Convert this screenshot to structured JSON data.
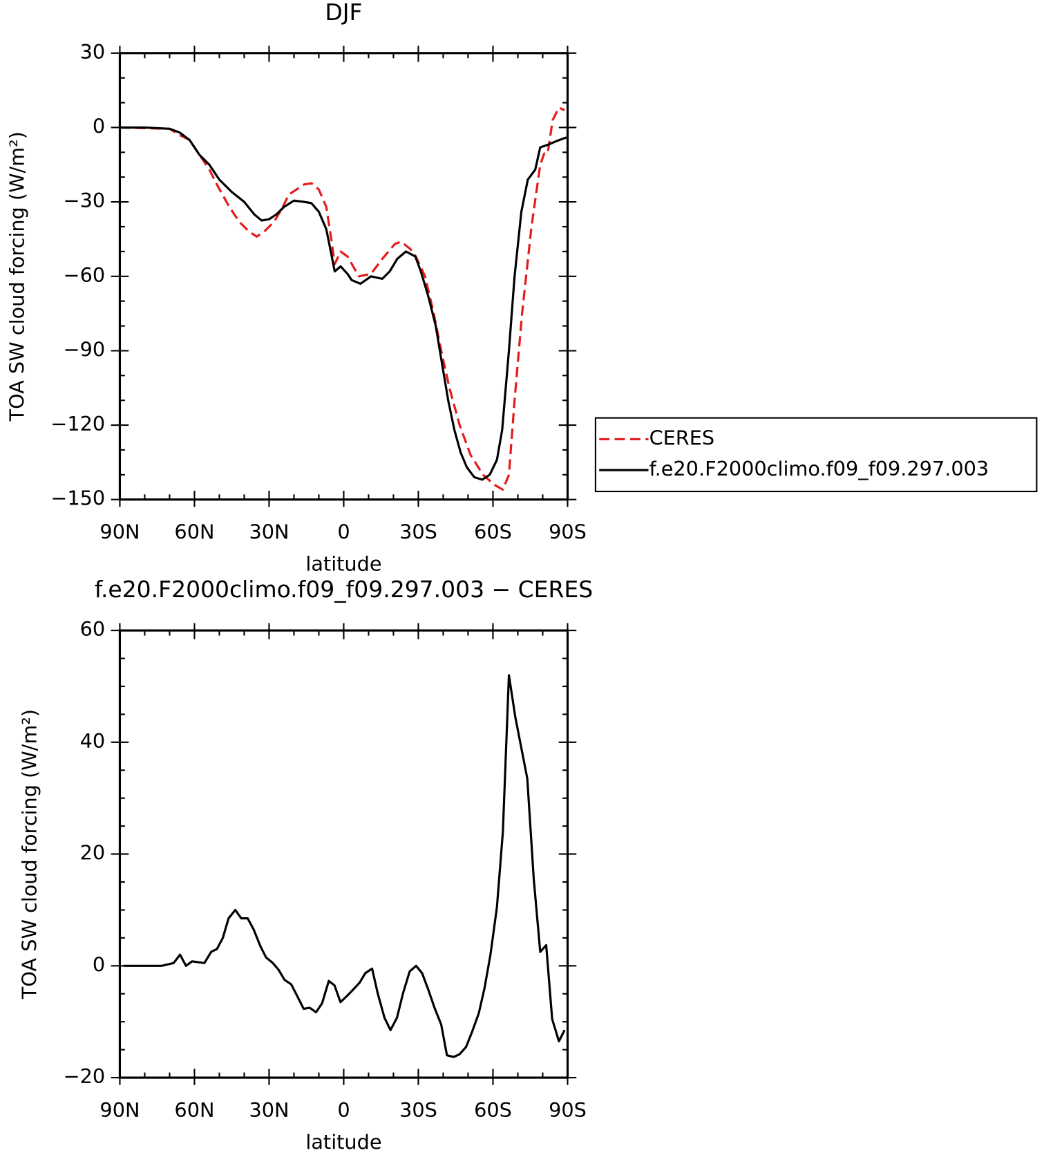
{
  "chart_data": [
    {
      "type": "line",
      "title": "DJF",
      "xlabel": "latitude",
      "ylabel": "TOA SW cloud forcing (W/m²)",
      "xlim": [
        90,
        -90
      ],
      "xticks": [
        {
          "value": 90,
          "label": "90N"
        },
        {
          "value": 60,
          "label": "60N"
        },
        {
          "value": 30,
          "label": "30N"
        },
        0,
        {
          "value": -30,
          "label": "30S"
        },
        {
          "value": -60,
          "label": "60S"
        },
        {
          "value": -90,
          "label": "90S"
        }
      ],
      "xminorticks": [
        80,
        70,
        50,
        40,
        20,
        10,
        -10,
        -20,
        -40,
        -50,
        -70,
        -80
      ],
      "ylim": [
        -150,
        30
      ],
      "yticks": [
        {
          "value": -150,
          "label": "−150"
        },
        {
          "value": -120,
          "label": "−120"
        },
        {
          "value": -90,
          "label": "−90"
        },
        {
          "value": -60,
          "label": "−60"
        },
        {
          "value": -30,
          "label": "−30"
        },
        0,
        30
      ],
      "yminorticks": [
        -140,
        -130,
        -110,
        -100,
        -80,
        -70,
        -50,
        -40,
        -20,
        -10,
        10,
        20
      ],
      "legend": "right",
      "series": [
        {
          "name": "CERES",
          "color": "#e41a1c",
          "dashed": true,
          "x": [
            90,
            70,
            66,
            62,
            58,
            54,
            51,
            46,
            42,
            38,
            35,
            32,
            28,
            25,
            22,
            19,
            16,
            13,
            10,
            7,
            5,
            3.6,
            1.2,
            -1.5,
            -6.1,
            -11,
            -15.5,
            -20.5,
            -23,
            -26.8,
            -29,
            -32.7,
            -36.2,
            -39.2,
            -42.5,
            -46.6,
            -51,
            -56,
            -60.5,
            -64,
            -66.4,
            -68.7,
            -71.7,
            -75.5,
            -79,
            -80.6,
            -82,
            -84,
            -86.5,
            -88.8
          ],
          "values": [
            0,
            -0.5,
            -3,
            -5,
            -11,
            -17,
            -23,
            -32,
            -38,
            -42,
            -44,
            -42,
            -38,
            -33,
            -27,
            -25,
            -23,
            -22.5,
            -25,
            -32,
            -45,
            -55,
            -50,
            -52,
            -60,
            -59,
            -53,
            -47,
            -46,
            -49,
            -52,
            -60,
            -75,
            -90,
            -105,
            -120,
            -132,
            -140,
            -144,
            -146,
            -140,
            -110,
            -75,
            -40,
            -15,
            -10.5,
            -10.5,
            3,
            8,
            7
          ]
        },
        {
          "name": "f.e20.F2000climo.f09_f09.297.003",
          "color": "#000000",
          "dashed": false,
          "x": [
            90,
            80,
            70,
            66,
            62,
            58,
            54,
            50,
            45,
            40,
            36,
            33,
            30,
            27,
            24,
            20,
            16,
            13,
            10,
            7,
            5,
            3.6,
            1.2,
            -1.5,
            -3.2,
            -6.7,
            -11,
            -15.5,
            -18.5,
            -21.5,
            -25,
            -28.8,
            -31,
            -34,
            -37,
            -39.5,
            -42,
            -44.5,
            -47,
            -49.5,
            -52.5,
            -55.7,
            -58.7,
            -61.6,
            -63.7,
            -66.4,
            -68.7,
            -71.4,
            -74,
            -77,
            -79,
            -82,
            -85.5,
            -89.5
          ],
          "values": [
            0,
            0,
            -0.5,
            -2,
            -5,
            -11,
            -15,
            -21,
            -26,
            -30,
            -35,
            -37.5,
            -37,
            -35,
            -32,
            -29.5,
            -30,
            -30.5,
            -34,
            -41,
            -51,
            -58,
            -56,
            -59,
            -61.5,
            -63,
            -60,
            -61,
            -58,
            -53,
            -50,
            -52,
            -58,
            -68,
            -80,
            -95,
            -110,
            -122,
            -131,
            -137,
            -141,
            -142,
            -140,
            -134,
            -122,
            -90,
            -60,
            -34,
            -21,
            -17,
            -8,
            -7,
            -5.5,
            -4
          ]
        }
      ]
    },
    {
      "type": "line",
      "title": "f.e20.F2000climo.f09_f09.297.003 − CERES",
      "xlabel": "latitude",
      "ylabel": "TOA SW cloud forcing (W/m²)",
      "xlim": [
        90,
        -90
      ],
      "xticks": [
        {
          "value": 90,
          "label": "90N"
        },
        {
          "value": 60,
          "label": "60N"
        },
        {
          "value": 30,
          "label": "30N"
        },
        0,
        {
          "value": -30,
          "label": "30S"
        },
        {
          "value": -60,
          "label": "60S"
        },
        {
          "value": -90,
          "label": "90S"
        }
      ],
      "xminorticks": [
        80,
        70,
        50,
        40,
        20,
        10,
        -10,
        -20,
        -40,
        -50,
        -70,
        -80
      ],
      "ylim": [
        -20,
        60
      ],
      "yticks": [
        {
          "value": -20,
          "label": "−20"
        },
        0,
        20,
        40,
        60
      ],
      "yminorticks": [
        -15,
        -10,
        -5,
        5,
        10,
        15,
        25,
        30,
        35,
        45,
        50,
        55
      ],
      "color": "#000000",
      "x": [
        88.5,
        73.2,
        68.4,
        65.8,
        63.4,
        61,
        56,
        53.3,
        51,
        48.6,
        46.3,
        43.6,
        41.2,
        38.6,
        36.2,
        33.5,
        31.2,
        28.5,
        26.2,
        23.8,
        21.1,
        18.8,
        16.1,
        13.7,
        11.1,
        8.7,
        6,
        3.7,
        1.3,
        -1.5,
        -3.7,
        -6.4,
        -8.7,
        -11.4,
        -13.7,
        -16.4,
        -18.8,
        -21.4,
        -23.8,
        -26.5,
        -29.1,
        -31.5,
        -34.2,
        -36.5,
        -39.2,
        -41.5,
        -44.2,
        -46.6,
        -49.2,
        -51.6,
        -54.3,
        -56.6,
        -59,
        -61.6,
        -64,
        -66.4,
        -69,
        -73.8,
        -76.4,
        -79,
        -81.4,
        -83.8,
        -86.5,
        -88.8
      ],
      "values": [
        0,
        0,
        0.5,
        2,
        0,
        0.8,
        0.5,
        2.5,
        3,
        5,
        8.5,
        10,
        8.5,
        8.5,
        6.5,
        3.5,
        1.5,
        0.5,
        -0.7,
        -2.5,
        -3.3,
        -5.3,
        -7.7,
        -7.5,
        -8.3,
        -6.7,
        -2.7,
        -3.5,
        -6.5,
        -5.3,
        -4.3,
        -3,
        -1.3,
        -0.5,
        -5,
        -9.3,
        -11.5,
        -9.3,
        -5,
        -1,
        0,
        -1.3,
        -4.5,
        -7.5,
        -10.5,
        -16,
        -16.3,
        -15.8,
        -14.5,
        -11.8,
        -8.5,
        -4,
        2,
        10.5,
        24,
        52,
        44.5,
        33.5,
        15.5,
        2.5,
        3.7,
        -9.5,
        -13.5,
        -11.5
      ]
    }
  ]
}
